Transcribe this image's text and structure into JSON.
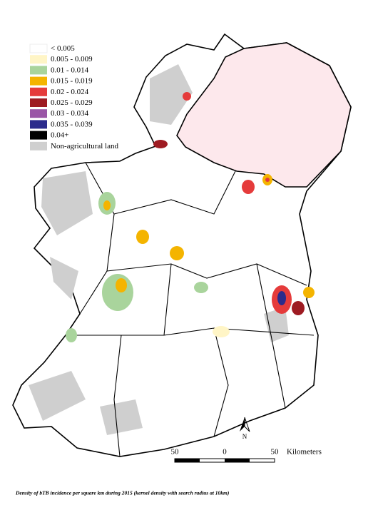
{
  "legend": {
    "items": [
      {
        "label": "< 0.005",
        "color": "#ffffff"
      },
      {
        "label": "0.005 - 0.009",
        "color": "#fff5c6"
      },
      {
        "label": "0.01 - 0.014",
        "color": "#a9d49c"
      },
      {
        "label": "0.015 - 0.019",
        "color": "#f4b400"
      },
      {
        "label": "0.02 - 0.024",
        "color": "#e53b3b"
      },
      {
        "label": "0.025 - 0.029",
        "color": "#9e1b22"
      },
      {
        "label": "0.03 - 0.034",
        "color": "#9a56a6"
      },
      {
        "label": "0.035 - 0.039",
        "color": "#2b2b8c"
      },
      {
        "label": "0.04+",
        "color": "#000000"
      },
      {
        "label": "Non-agricultural land",
        "color": "#cfcfcf"
      }
    ]
  },
  "north_arrow": "N",
  "scale_bar": {
    "labels": [
      "50",
      "0",
      "50"
    ],
    "unit": "Kilometers"
  },
  "caption": "Density of bTB incidence per square km during 2015 (kernel density with search radius at 10km)"
}
